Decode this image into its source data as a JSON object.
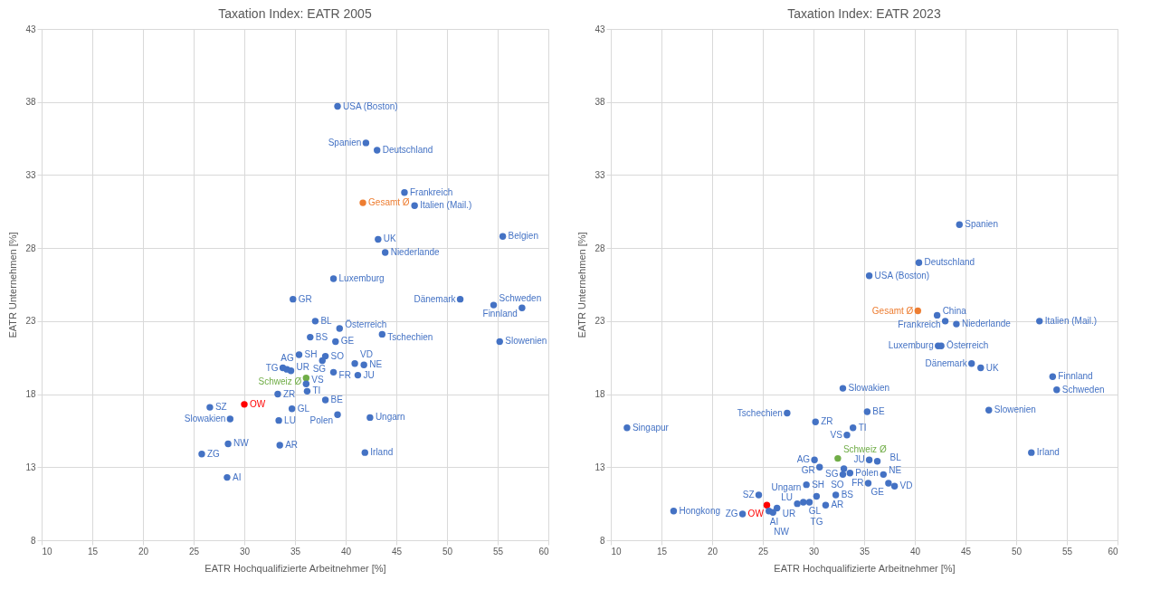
{
  "chart_data": [
    {
      "type": "scatter",
      "title": "Taxation Index: EATR 2005",
      "xlabel": "EATR Hochqualifizierte Arbeitnehmer [%]",
      "ylabel": "EATR Unternehmen [%]",
      "xlim": [
        10,
        60
      ],
      "xticks": [
        10,
        15,
        20,
        25,
        30,
        35,
        40,
        45,
        50,
        55,
        60
      ],
      "ylim": [
        8,
        43
      ],
      "yticks": [
        8,
        13,
        18,
        23,
        28,
        33,
        38,
        43
      ],
      "grid": true,
      "marker": "circle",
      "series": [
        {
          "x": [
            39.2,
            42.0,
            43.1,
            45.8,
            41.7,
            46.8,
            43.2,
            43.9,
            55.5,
            38.8,
            34.8,
            51.3,
            54.6,
            57.4,
            55.2,
            37.0,
            39.4,
            43.6,
            36.5,
            39.0,
            35.4,
            38.0,
            37.7,
            40.9,
            41.8,
            38.8,
            41.2,
            33.8,
            34.6,
            34.2,
            36.1,
            36.1,
            36.2,
            33.3,
            38.0,
            34.7,
            39.2,
            42.4,
            33.4,
            28.6,
            26.6,
            30.0,
            28.4,
            33.5,
            25.8,
            41.9,
            28.3
          ],
          "values": [
            37.7,
            35.2,
            34.7,
            31.8,
            31.1,
            30.9,
            28.6,
            27.7,
            28.8,
            25.9,
            24.5,
            24.5,
            24.1,
            23.9,
            21.6,
            23.0,
            22.5,
            22.1,
            21.9,
            21.6,
            20.7,
            20.6,
            20.3,
            20.1,
            20.0,
            19.5,
            19.3,
            19.8,
            19.6,
            19.7,
            19.1,
            18.7,
            18.2,
            18.0,
            17.6,
            17.0,
            16.6,
            16.4,
            16.2,
            16.3,
            17.1,
            17.3,
            14.6,
            14.5,
            13.9,
            14.0,
            12.3
          ],
          "value_labels": [
            "USA (Boston)",
            "Spanien",
            "Deutschland",
            "Frankreich",
            "Gesamt Ø",
            "Italien (Mail.)",
            "UK",
            "Niederlande",
            "Belgien",
            "Luxemburg",
            "GR",
            "Dänemark",
            "Schweden",
            "Finnland",
            "Slowenien",
            "BL",
            "Österreich",
            "Tschechien",
            "BS",
            "GE",
            "SH",
            "SO",
            "SG",
            "VD",
            "NE",
            "FR",
            "JU",
            "TG",
            "UR",
            "AG",
            "Schweiz Ø",
            "VS",
            "TI",
            "ZR",
            "BE",
            "GL",
            "Polen",
            "Ungarn",
            "LU",
            "Slowakien",
            "SZ",
            "OW",
            "NW",
            "AR",
            "ZG",
            "Irland",
            "AI"
          ],
          "colors": [
            "#4472c4",
            "#4472c4",
            "#4472c4",
            "#4472c4",
            "#ed7d31",
            "#4472c4",
            "#4472c4",
            "#4472c4",
            "#4472c4",
            "#4472c4",
            "#4472c4",
            "#4472c4",
            "#4472c4",
            "#4472c4",
            "#4472c4",
            "#4472c4",
            "#4472c4",
            "#4472c4",
            "#4472c4",
            "#4472c4",
            "#4472c4",
            "#4472c4",
            "#4472c4",
            "#4472c4",
            "#4472c4",
            "#4472c4",
            "#4472c4",
            "#4472c4",
            "#4472c4",
            "#4472c4",
            "#70ad47",
            "#4472c4",
            "#4472c4",
            "#4472c4",
            "#4472c4",
            "#4472c4",
            "#4472c4",
            "#4472c4",
            "#4472c4",
            "#4472c4",
            "#4472c4",
            "#ff0000",
            "#4472c4",
            "#4472c4",
            "#4472c4",
            "#4472c4",
            "#4472c4"
          ]
        }
      ]
    },
    {
      "type": "scatter",
      "title": "Taxation Index: EATR 2023",
      "xlabel": "EATR Hochqualifizierte Arbeitnehmer [%]",
      "ylabel": "EATR Unternehmen [%]",
      "xlim": [
        10,
        60
      ],
      "xticks": [
        10,
        15,
        20,
        25,
        30,
        35,
        40,
        45,
        50,
        55,
        60
      ],
      "ylim": [
        8,
        43
      ],
      "yticks": [
        8,
        13,
        18,
        23,
        28,
        33,
        38,
        43
      ],
      "grid": true,
      "marker": "circle",
      "series": [
        {
          "x": [
            44.4,
            40.4,
            35.5,
            40.3,
            42.2,
            43.0,
            44.1,
            52.3,
            42.6,
            42.3,
            45.6,
            46.5,
            53.6,
            54.0,
            32.9,
            47.3,
            27.4,
            35.3,
            30.2,
            11.6,
            33.9,
            33.3,
            32.4,
            30.1,
            35.5,
            36.3,
            30.6,
            33.0,
            33.6,
            32.9,
            36.9,
            35.4,
            37.4,
            38.0,
            29.3,
            32.2,
            51.5,
            28.4,
            29.0,
            29.6,
            30.3,
            31.2,
            24.6,
            25.4,
            25.6,
            26.0,
            26.4,
            23.0,
            16.2
          ],
          "values": [
            29.6,
            27.0,
            26.1,
            23.7,
            23.4,
            23.0,
            22.8,
            23.0,
            21.3,
            21.3,
            20.1,
            19.8,
            19.2,
            18.3,
            18.4,
            16.9,
            16.7,
            16.8,
            16.1,
            15.7,
            15.7,
            15.2,
            13.6,
            13.5,
            13.5,
            13.4,
            13.0,
            12.9,
            12.6,
            12.5,
            12.5,
            11.9,
            11.9,
            11.7,
            11.8,
            11.1,
            14.0,
            10.5,
            10.6,
            10.6,
            11.0,
            10.4,
            11.1,
            10.4,
            10.0,
            9.9,
            10.2,
            9.8,
            10.0
          ],
          "value_labels": [
            "Spanien",
            "Deutschland",
            "USA (Boston)",
            "Gesamt Ø",
            "China",
            "Frankreich",
            "Niederlande",
            "Italien (Mail.)",
            "Österreich",
            "Luxemburg",
            "Dänemark",
            "UK",
            "Finnland",
            "Schweden",
            "Slowakien",
            "Slowenien",
            "Tschechien",
            "BE",
            "ZR",
            "Singapur",
            "TI",
            "VS",
            "Schweiz Ø",
            "AG",
            "JU",
            "BL",
            "GR",
            "SO",
            "Polen",
            "SG",
            "NE",
            "FR",
            "GE",
            "VD",
            "SH",
            "BS",
            "Irland",
            "LU",
            "GL",
            "TG",
            "Ungarn",
            "AR",
            "SZ",
            "OW",
            "AI",
            "NW",
            "UR",
            "ZG",
            "Hongkong"
          ],
          "colors": [
            "#4472c4",
            "#4472c4",
            "#4472c4",
            "#ed7d31",
            "#4472c4",
            "#4472c4",
            "#4472c4",
            "#4472c4",
            "#4472c4",
            "#4472c4",
            "#4472c4",
            "#4472c4",
            "#4472c4",
            "#4472c4",
            "#4472c4",
            "#4472c4",
            "#4472c4",
            "#4472c4",
            "#4472c4",
            "#4472c4",
            "#4472c4",
            "#4472c4",
            "#70ad47",
            "#4472c4",
            "#4472c4",
            "#4472c4",
            "#4472c4",
            "#4472c4",
            "#4472c4",
            "#4472c4",
            "#4472c4",
            "#4472c4",
            "#4472c4",
            "#4472c4",
            "#4472c4",
            "#4472c4",
            "#4472c4",
            "#4472c4",
            "#4472c4",
            "#4472c4",
            "#4472c4",
            "#4472c4",
            "#4472c4",
            "#ff0000",
            "#4472c4",
            "#4472c4",
            "#4472c4",
            "#4472c4",
            "#4472c4"
          ]
        }
      ]
    }
  ]
}
